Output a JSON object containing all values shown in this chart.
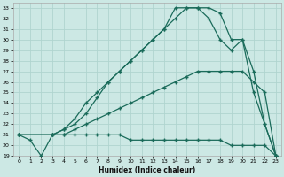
{
  "xlabel": "Humidex (Indice chaleur)",
  "bg_color": "#cce8e4",
  "grid_color": "#b0d4cf",
  "line_color": "#1a6b5a",
  "xlim": [
    -0.5,
    23.5
  ],
  "ylim": [
    19,
    33.5
  ],
  "xticks": [
    0,
    1,
    2,
    3,
    4,
    5,
    6,
    7,
    8,
    9,
    10,
    11,
    12,
    13,
    14,
    15,
    16,
    17,
    18,
    19,
    20,
    21,
    22,
    23
  ],
  "yticks": [
    19,
    20,
    21,
    22,
    23,
    24,
    25,
    26,
    27,
    28,
    29,
    30,
    31,
    32,
    33
  ],
  "line1_x": [
    0,
    1,
    2,
    3,
    4,
    5,
    6,
    7,
    8,
    9,
    10,
    11,
    12,
    13,
    14,
    15,
    16,
    17,
    18,
    19,
    20,
    21,
    22,
    23
  ],
  "line1_y": [
    21,
    20.5,
    19,
    21,
    21,
    21,
    21,
    21,
    21,
    21,
    20.5,
    20.5,
    20.5,
    20.5,
    20.5,
    20.5,
    20.5,
    20.5,
    20.5,
    20,
    20,
    20,
    20,
    19
  ],
  "line2_x": [
    0,
    3,
    4,
    5,
    6,
    7,
    8,
    9,
    10,
    11,
    12,
    13,
    14,
    15,
    16,
    17,
    18,
    19,
    20,
    21,
    22,
    23
  ],
  "line2_y": [
    21,
    21,
    21,
    21.5,
    22,
    22.5,
    23,
    23.5,
    24,
    24.5,
    25,
    25.5,
    26,
    26.5,
    27,
    27,
    27,
    27,
    27,
    26,
    25,
    19
  ],
  "line3_x": [
    0,
    3,
    4,
    5,
    6,
    7,
    8,
    9,
    10,
    11,
    12,
    13,
    14,
    15,
    16,
    17,
    18,
    19,
    20,
    21,
    22,
    23
  ],
  "line3_y": [
    21,
    21,
    21.5,
    22.5,
    24,
    25,
    26,
    27,
    28,
    29,
    30,
    31,
    33,
    33,
    33,
    32,
    30,
    29,
    30,
    27,
    22,
    19
  ],
  "line4_x": [
    0,
    3,
    4,
    5,
    6,
    7,
    8,
    9,
    10,
    11,
    12,
    13,
    14,
    15,
    16,
    17,
    18,
    19,
    20,
    21,
    22,
    23
  ],
  "line4_y": [
    21,
    21,
    21.5,
    22,
    23,
    24.5,
    26,
    27,
    28,
    29,
    30,
    31,
    32,
    33,
    33,
    33,
    32.5,
    30,
    30,
    25,
    22,
    19
  ]
}
